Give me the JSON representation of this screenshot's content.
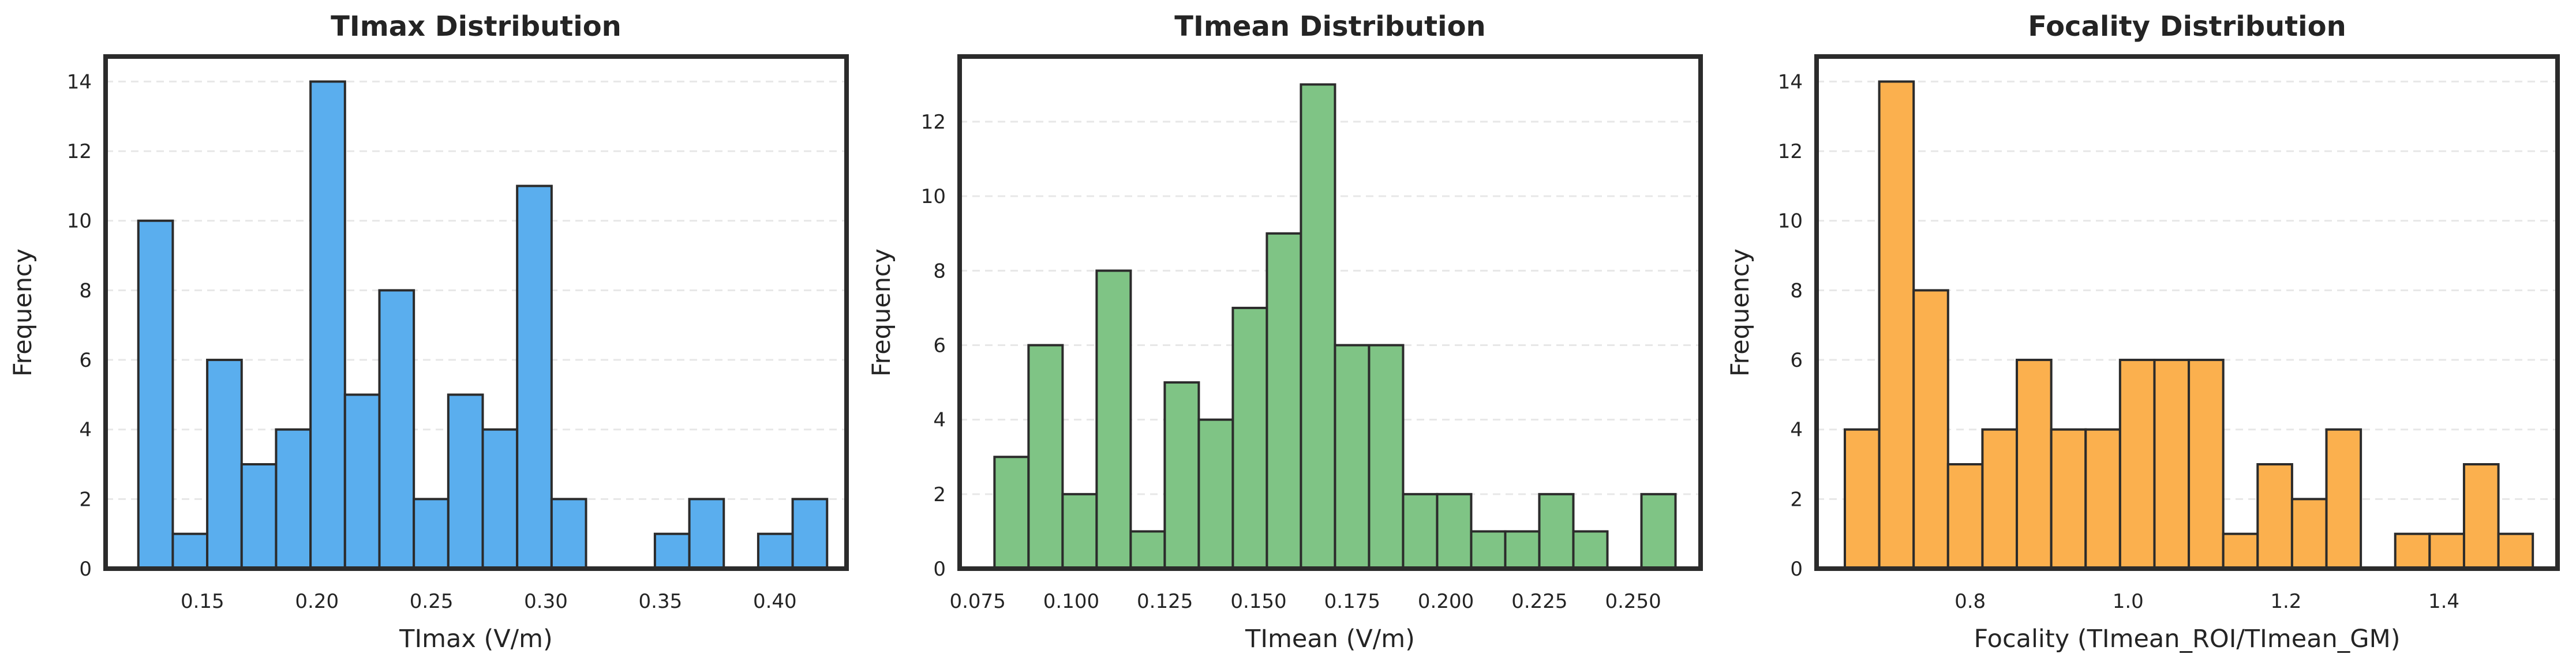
{
  "figure": {
    "background_color": "#ffffff",
    "text_color": "#242424",
    "spine_color": "#2b2b2b",
    "grid_color": "#e7e7e7"
  },
  "chart_data": [
    {
      "type": "bar",
      "subtype": "histogram",
      "title": "TImax Distribution",
      "xlabel": "TImax (V/m)",
      "ylabel": "Frequency",
      "bar_color": "#5aaeee",
      "bar_edge_color": "#2b2b2b",
      "bin_start": 0.122,
      "bin_width": 0.01504,
      "counts": [
        10,
        1,
        6,
        3,
        4,
        14,
        5,
        8,
        2,
        5,
        4,
        11,
        2,
        0,
        0,
        1,
        2,
        0,
        1,
        2
      ],
      "xlim": [
        0.1077,
        0.4313
      ],
      "ylim": [
        0,
        14.72
      ],
      "x_tick_values": [
        0.15,
        0.2,
        0.25,
        0.3,
        0.35,
        0.4
      ],
      "x_tick_labels": [
        "0.15",
        "0.20",
        "0.25",
        "0.30",
        "0.35",
        "0.40"
      ],
      "y_tick_values": [
        0,
        2,
        4,
        6,
        8,
        10,
        12,
        14
      ],
      "y_tick_labels": [
        "0",
        "2",
        "4",
        "6",
        "8",
        "10",
        "12",
        "14"
      ],
      "grid": "horizontal-dashed",
      "legend": "none"
    },
    {
      "type": "bar",
      "subtype": "histogram",
      "title": "TImean Distribution",
      "xlabel": "TImean (V/m)",
      "ylabel": "Frequency",
      "bar_color": "#7fc485",
      "bar_edge_color": "#2b2b2b",
      "bin_start": 0.0795,
      "bin_width": 0.00909,
      "counts": [
        3,
        6,
        2,
        8,
        1,
        5,
        4,
        7,
        9,
        13,
        6,
        6,
        2,
        2,
        1,
        1,
        2,
        1,
        0,
        2
      ],
      "xlim": [
        0.0702,
        0.268
      ],
      "ylim": [
        0,
        13.75
      ],
      "x_tick_values": [
        0.075,
        0.1,
        0.125,
        0.15,
        0.175,
        0.2,
        0.225,
        0.25
      ],
      "x_tick_labels": [
        "0.075",
        "0.100",
        "0.125",
        "0.150",
        "0.175",
        "0.200",
        "0.225",
        "0.250"
      ],
      "y_tick_values": [
        0,
        2,
        4,
        6,
        8,
        10,
        12
      ],
      "y_tick_labels": [
        "0",
        "2",
        "4",
        "6",
        "8",
        "10",
        "12"
      ],
      "grid": "horizontal-dashed",
      "legend": "none"
    },
    {
      "type": "bar",
      "subtype": "histogram",
      "title": "Focality Distribution",
      "xlabel": "Focality (TImean_ROI/TImean_GM)",
      "ylabel": "Frequency",
      "bar_color": "#fbb04e",
      "bar_edge_color": "#2b2b2b",
      "bin_start": 0.6413,
      "bin_width": 0.04357,
      "counts": [
        4,
        14,
        8,
        3,
        4,
        6,
        4,
        4,
        6,
        6,
        6,
        1,
        3,
        2,
        4,
        0,
        1,
        1,
        3,
        1
      ],
      "xlim": [
        0.6055,
        1.544
      ],
      "ylim": [
        0,
        14.72
      ],
      "x_tick_values": [
        0.8,
        1.0,
        1.2,
        1.4
      ],
      "x_tick_labels": [
        "0.8",
        "1.0",
        "1.2",
        "1.4"
      ],
      "y_tick_values": [
        0,
        2,
        4,
        6,
        8,
        10,
        12,
        14
      ],
      "y_tick_labels": [
        "0",
        "2",
        "4",
        "6",
        "8",
        "10",
        "12",
        "14"
      ],
      "grid": "horizontal-dashed",
      "legend": "none"
    }
  ]
}
